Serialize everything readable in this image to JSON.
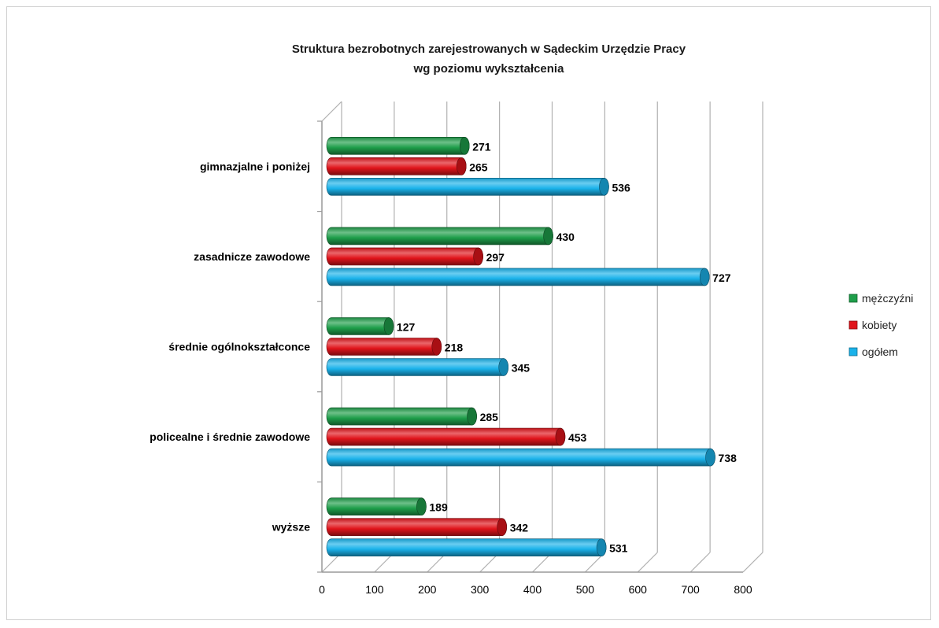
{
  "chart_data": {
    "type": "bar",
    "orientation": "horizontal",
    "title": "Struktura bezrobotnych zarejestrowanych w Sądeckim Urzędzie Pracy",
    "subtitle": "wg poziomu wykształcenia",
    "categories": [
      "gimnazjalne  i poniżej",
      "zasadnicze  zawodowe",
      "średnie ogólnokształconce",
      "policealne  i średnie zawodowe",
      "wyższe"
    ],
    "series": [
      {
        "name": "mężczyźni",
        "color": "#1e9e4a",
        "values": [
          271,
          430,
          127,
          285,
          189
        ]
      },
      {
        "name": "kobiety",
        "color": "#e0141b",
        "values": [
          265,
          297,
          218,
          453,
          342
        ]
      },
      {
        "name": "ogółem",
        "color": "#1ab2ea",
        "values": [
          536,
          727,
          345,
          738,
          531
        ]
      }
    ],
    "xlim": [
      0,
      800
    ],
    "xticks": [
      "0",
      "100",
      "200",
      "300",
      "400",
      "500",
      "600",
      "700",
      "800"
    ],
    "grid": true,
    "legend_position": "right",
    "style": "3d-cylinder"
  }
}
